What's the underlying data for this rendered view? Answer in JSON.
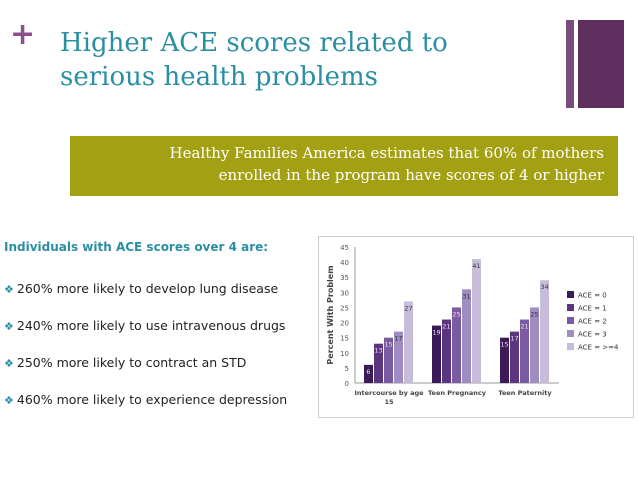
{
  "slide": {
    "plus_symbol": "+",
    "title_line1": "Higher ACE scores related to",
    "title_line2": "serious health problems"
  },
  "banner": {
    "line1": "Healthy Families America estimates that 60% of mothers",
    "line2": "enrolled in the program have scores of 4 or higher"
  },
  "content": {
    "intro": "Individuals with ACE scores over 4 are:",
    "bullets": [
      "260% more likely to develop lung disease",
      "240% more likely to use intravenous drugs",
      "250% more likely to contract an STD",
      "460% more likely to experience depression"
    ]
  },
  "colors": {
    "title": "#2a8fa3",
    "plus": "#8b4f8b",
    "banner": "#a4a014"
  },
  "chart_data": {
    "type": "bar",
    "categories": [
      "Intercourse by age 15",
      "Teen Pregnancy",
      "Teen Paternity"
    ],
    "category_lines": [
      [
        "Intercourse by age",
        "15"
      ],
      [
        "Teen Pregnancy"
      ],
      [
        "Teen Paternity"
      ]
    ],
    "series": [
      {
        "name": "ACE = 0",
        "color": "#3a1a57",
        "values": [
          6,
          19,
          15
        ]
      },
      {
        "name": "ACE = 1",
        "color": "#5b3580",
        "values": [
          13,
          21,
          17
        ]
      },
      {
        "name": "ACE = 2",
        "color": "#7a5aa0",
        "values": [
          15,
          25,
          21
        ]
      },
      {
        "name": "ACE = 3",
        "color": "#9f8cc0",
        "values": [
          17,
          31,
          25
        ]
      },
      {
        "name": "ACE = >=4",
        "color": "#c7bddb",
        "values": [
          27,
          41,
          34
        ]
      }
    ],
    "ylabel": "Percent With Problem",
    "ylim": [
      0,
      45
    ],
    "yticks": [
      0,
      5,
      10,
      15,
      20,
      25,
      30,
      35,
      40,
      45
    ],
    "grid": false,
    "legend": "right"
  }
}
